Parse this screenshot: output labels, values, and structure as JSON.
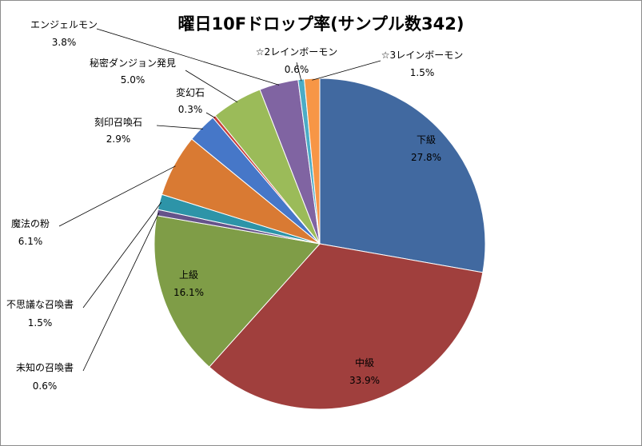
{
  "chart_data": {
    "type": "pie",
    "title": "曜日10Fドロップ率(サンプル数342)",
    "slices": [
      {
        "name": "下級",
        "value": 27.8,
        "label": "27.8%",
        "color": "#4169A0"
      },
      {
        "name": "中級",
        "value": 33.9,
        "label": "33.9%",
        "color": "#A03F3D"
      },
      {
        "name": "上級",
        "value": 16.1,
        "label": "16.1%",
        "color": "#7F9D47"
      },
      {
        "name": "未知の召喚書",
        "value": 0.6,
        "label": "0.6%",
        "color": "#65538A"
      },
      {
        "name": "不思議な召喚書",
        "value": 1.5,
        "label": "1.5%",
        "color": "#2D94A8"
      },
      {
        "name": "魔法の粉",
        "value": 6.1,
        "label": "6.1%",
        "color": "#D97A33"
      },
      {
        "name": "刻印召喚石",
        "value": 2.9,
        "label": "2.9%",
        "color": "#4677C8"
      },
      {
        "name": "変幻石",
        "value": 0.3,
        "label": "0.3%",
        "color": "#C8413C"
      },
      {
        "name": "秘密ダンジョン発見",
        "value": 5.0,
        "label": "5.0%",
        "color": "#9BBB59"
      },
      {
        "name": "エンジェルモン",
        "value": 3.8,
        "label": "3.8%",
        "color": "#8064A2"
      },
      {
        "name": "☆2レインボーモン",
        "value": 0.6,
        "label": "0.6%",
        "color": "#4BACC6"
      },
      {
        "name": "☆3レインボーモン",
        "value": 1.5,
        "label": "1.5%",
        "color": "#F79646"
      }
    ],
    "legend": "none"
  }
}
